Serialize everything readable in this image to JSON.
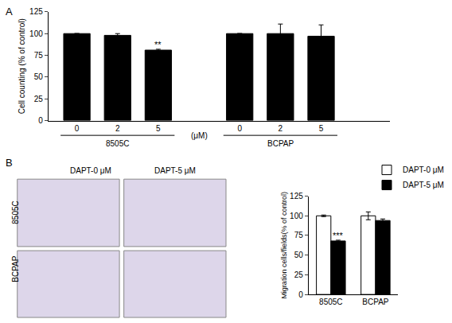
{
  "panel_labels": [
    "A",
    "B"
  ],
  "images": {
    "columns": [
      "DAPT-0 μM",
      "DAPT-5 μM"
    ],
    "rows": [
      "8505C",
      "BCPAP"
    ]
  },
  "chart_data": [
    {
      "type": "bar",
      "ylabel": "Cell counting (% of control)",
      "x_unit": "(μM)",
      "color": "#000000",
      "groups": [
        {
          "name": "8505C",
          "categories": [
            "0",
            "2",
            "5"
          ],
          "values": [
            100,
            98,
            81
          ],
          "errors": [
            0,
            2,
            1
          ]
        },
        {
          "name": "BCPAP",
          "categories": [
            "0",
            "2",
            "5"
          ],
          "values": [
            100,
            100,
            97
          ],
          "errors": [
            0,
            11,
            13
          ]
        }
      ],
      "ylim": [
        0,
        125
      ],
      "yticks": [
        0,
        25,
        50,
        75,
        100,
        125
      ],
      "grid": false,
      "annotations": [
        {
          "group": "8505C",
          "category": "5",
          "text": "**"
        }
      ]
    },
    {
      "type": "bar",
      "ylabel": "Migration cells/fields(% of control)",
      "categories": [
        "8505C",
        "BCPAP"
      ],
      "series": [
        {
          "name": "DAPT-0 μM",
          "color": "#ffffff",
          "values": [
            100,
            100
          ],
          "errors": [
            1,
            5
          ]
        },
        {
          "name": "DAPT-5 μM",
          "color": "#000000",
          "values": [
            68,
            94
          ],
          "errors": [
            1,
            2
          ]
        }
      ],
      "ylim": [
        0,
        125
      ],
      "yticks": [
        0,
        25,
        50,
        75,
        100,
        125
      ],
      "grid": false,
      "legend": "top right",
      "annotations": [
        {
          "series": "DAPT-5 μM",
          "category": "8505C",
          "text": "***"
        }
      ]
    }
  ]
}
